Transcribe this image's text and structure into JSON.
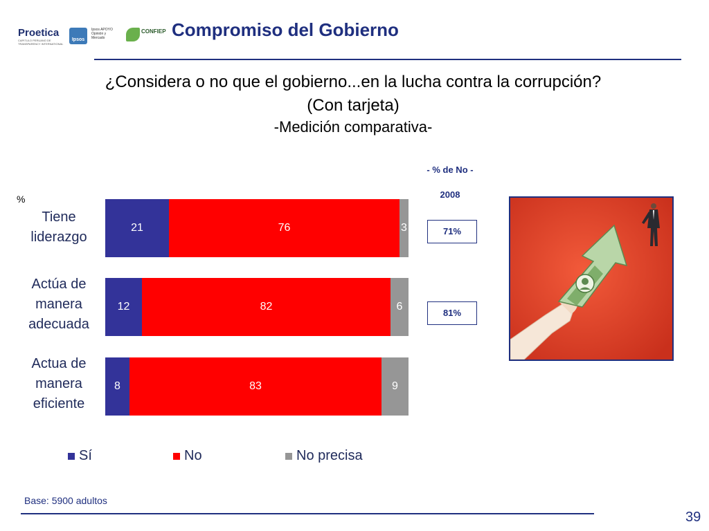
{
  "header": {
    "title": "Compromiso del Gobierno",
    "logos": {
      "proetica": "Proetica",
      "proetica_sub": "CAPITULO PERUANO DE TRANSPARENCY INTERNATIONAL",
      "ipsos": "Ipsos",
      "ipsos_apoyo": "Ipsos APOYO",
      "ipsos_apoyo_sub": "Opinión y Mercado",
      "confiep": "CONFIEP"
    }
  },
  "question": {
    "line1": "¿Considera o no que el gobierno...en la lucha contra la corrupción?",
    "line2": "(Con tarjeta)",
    "line3": "-Medición comparativa-"
  },
  "unit_label": "%",
  "colors": {
    "si": "#333399",
    "no": "#ff0000",
    "no_precisa": "#969696",
    "accent": "#1f2f7f"
  },
  "chart_data": {
    "type": "bar",
    "orientation": "horizontal",
    "stacked": true,
    "categories": [
      "Tiene liderazgo",
      "Actúa de manera adecuada",
      "Actua de manera eficiente"
    ],
    "category_lines": [
      [
        "Tiene",
        "liderazgo"
      ],
      [
        "Actúa de",
        "manera",
        "adecuada"
      ],
      [
        "Actua de",
        "manera",
        "eficiente"
      ]
    ],
    "series": [
      {
        "name": "Sí",
        "values": [
          21,
          12,
          8
        ],
        "color": "#333399"
      },
      {
        "name": "No",
        "values": [
          76,
          82,
          83
        ],
        "color": "#ff0000"
      },
      {
        "name": "No precisa",
        "values": [
          3,
          6,
          9
        ],
        "color": "#969696"
      }
    ],
    "xlim": [
      0,
      100
    ],
    "legend_position": "bottom",
    "grid": false
  },
  "comparison": {
    "heading": "- % de No -",
    "year": "2008",
    "values": [
      "71%",
      "81%"
    ]
  },
  "base_note": "Base: 5900 adultos",
  "page_number": "39"
}
